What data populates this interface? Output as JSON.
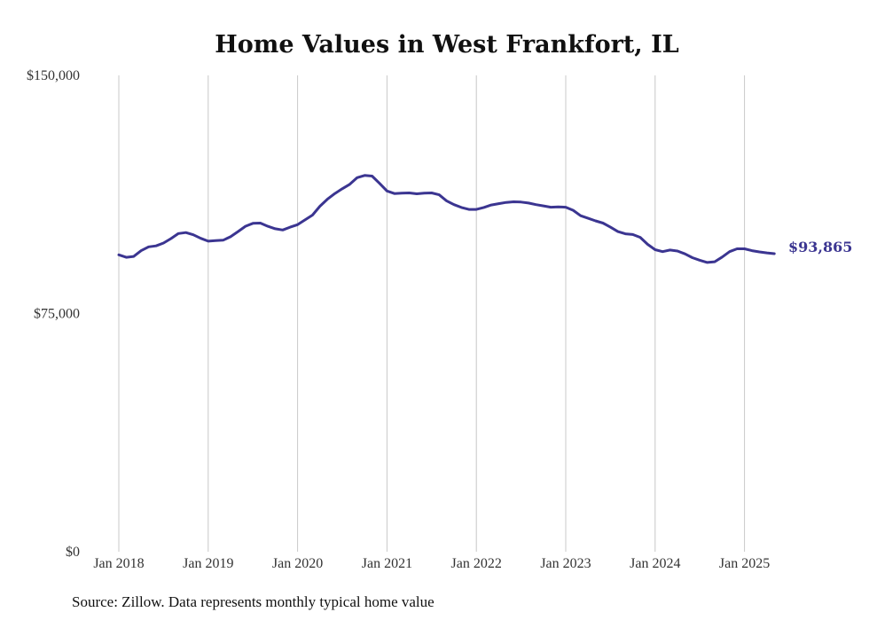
{
  "chart_data": {
    "type": "line",
    "title": "Home Values in West Frankfort, IL",
    "source": "Source: Zillow. Data represents monthly typical home value",
    "ylim": [
      0,
      150000
    ],
    "y_ticks": [
      {
        "value": 0,
        "label": "$0"
      },
      {
        "value": 75000,
        "label": "$75,000"
      },
      {
        "value": 150000,
        "label": "$150,000"
      }
    ],
    "x_ticks": [
      {
        "value": "2018-01",
        "label": "Jan 2018"
      },
      {
        "value": "2019-01",
        "label": "Jan 2019"
      },
      {
        "value": "2020-01",
        "label": "Jan 2020"
      },
      {
        "value": "2021-01",
        "label": "Jan 2021"
      },
      {
        "value": "2022-01",
        "label": "Jan 2022"
      },
      {
        "value": "2023-01",
        "label": "Jan 2023"
      },
      {
        "value": "2024-01",
        "label": "Jan 2024"
      },
      {
        "value": "2025-01",
        "label": "Jan 2025"
      }
    ],
    "grid": {
      "vertical": true,
      "horizontal": false
    },
    "series": [
      {
        "color": "#3b3591",
        "end_label": "$93,865",
        "x": [
          "2018-01",
          "2018-02",
          "2018-03",
          "2018-04",
          "2018-05",
          "2018-06",
          "2018-07",
          "2018-08",
          "2018-09",
          "2018-10",
          "2018-11",
          "2018-12",
          "2019-01",
          "2019-02",
          "2019-03",
          "2019-04",
          "2019-05",
          "2019-06",
          "2019-07",
          "2019-08",
          "2019-09",
          "2019-10",
          "2019-11",
          "2019-12",
          "2020-01",
          "2020-02",
          "2020-03",
          "2020-04",
          "2020-05",
          "2020-06",
          "2020-07",
          "2020-08",
          "2020-09",
          "2020-10",
          "2020-11",
          "2020-12",
          "2021-01",
          "2021-02",
          "2021-03",
          "2021-04",
          "2021-05",
          "2021-06",
          "2021-07",
          "2021-08",
          "2021-09",
          "2021-10",
          "2021-11",
          "2021-12",
          "2022-01",
          "2022-02",
          "2022-03",
          "2022-04",
          "2022-05",
          "2022-06",
          "2022-07",
          "2022-08",
          "2022-09",
          "2022-10",
          "2022-11",
          "2022-12",
          "2023-01",
          "2023-02",
          "2023-03",
          "2023-04",
          "2023-05",
          "2023-06",
          "2023-07",
          "2023-08",
          "2023-09",
          "2023-10",
          "2023-11",
          "2023-12",
          "2024-01",
          "2024-02",
          "2024-03",
          "2024-04",
          "2024-05",
          "2024-06",
          "2024-07",
          "2024-08",
          "2024-09",
          "2024-10",
          "2024-11",
          "2024-12",
          "2025-01",
          "2025-02",
          "2025-03",
          "2025-04",
          "2025-05"
        ],
        "values": [
          93500,
          92700,
          93000,
          94800,
          96000,
          96300,
          97200,
          98600,
          100200,
          100500,
          99800,
          98700,
          97800,
          98000,
          98100,
          99200,
          100800,
          102500,
          103400,
          103500,
          102500,
          101700,
          101300,
          102200,
          103000,
          104500,
          106000,
          108800,
          111000,
          112800,
          114300,
          115700,
          117800,
          118500,
          118300,
          116000,
          113600,
          112800,
          112900,
          113000,
          112700,
          112900,
          113000,
          112400,
          110500,
          109300,
          108400,
          107800,
          107800,
          108400,
          109200,
          109600,
          110000,
          110200,
          110100,
          109800,
          109300,
          108900,
          108500,
          108600,
          108500,
          107500,
          105800,
          105000,
          104200,
          103500,
          102200,
          100800,
          100100,
          99900,
          99000,
          96800,
          95100,
          94500,
          95000,
          94700,
          93800,
          92600,
          91800,
          91100,
          91300,
          92800,
          94500,
          95400,
          95400,
          94800,
          94400,
          94100,
          93865
        ]
      }
    ]
  }
}
